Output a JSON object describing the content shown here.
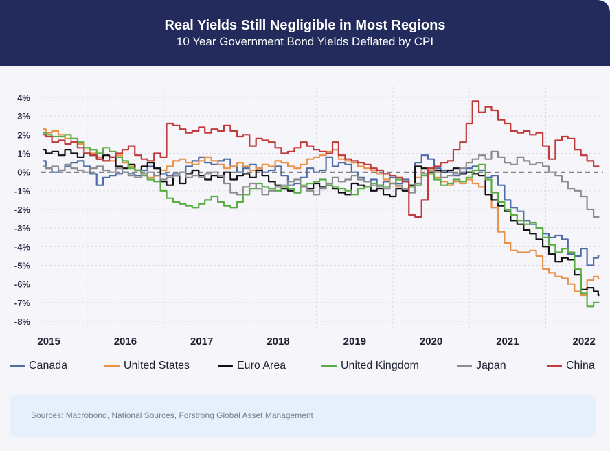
{
  "header": {
    "title": "Real Yields Still Negligible in Most Regions",
    "subtitle": "10 Year Government Bond Yields Deflated by CPI"
  },
  "source": "Sources: Macrobond, National Sources, Forstrong Global Asset Management",
  "chart_data": {
    "type": "line",
    "title": "Real Yields Still Negligible in Most Regions",
    "subtitle": "10 Year Government Bond Yields Deflated by CPI",
    "xlabel": "",
    "ylabel": "",
    "ylim": [
      -8,
      4
    ],
    "xlim": [
      2014.9,
      2022.25
    ],
    "grid": true,
    "legend": "bottom",
    "reference_line": 0,
    "yticks": [
      "4%",
      "3%",
      "2%",
      "1%",
      "0%",
      "-1%",
      "-2%",
      "-3%",
      "-4%",
      "-5%",
      "-6%",
      "-7%",
      "-8%"
    ],
    "ytick_values": [
      4,
      3,
      2,
      1,
      0,
      -1,
      -2,
      -3,
      -4,
      -5,
      -6,
      -7,
      -8
    ],
    "xticks": [
      "2015",
      "2016",
      "2017",
      "2018",
      "2019",
      "2020",
      "2021",
      "2022"
    ],
    "xtick_values": [
      2015,
      2016,
      2017,
      2018,
      2019,
      2020,
      2021,
      2022
    ],
    "x": [
      2014.92,
      2015.0,
      2015.08,
      2015.17,
      2015.25,
      2015.33,
      2015.42,
      2015.5,
      2015.58,
      2015.67,
      2015.75,
      2015.83,
      2015.92,
      2016.0,
      2016.08,
      2016.17,
      2016.25,
      2016.33,
      2016.42,
      2016.5,
      2016.58,
      2016.67,
      2016.75,
      2016.83,
      2016.92,
      2017.0,
      2017.08,
      2017.17,
      2017.25,
      2017.33,
      2017.42,
      2017.5,
      2017.58,
      2017.67,
      2017.75,
      2017.83,
      2017.92,
      2018.0,
      2018.08,
      2018.17,
      2018.25,
      2018.33,
      2018.42,
      2018.5,
      2018.58,
      2018.67,
      2018.75,
      2018.83,
      2018.92,
      2019.0,
      2019.08,
      2019.17,
      2019.25,
      2019.33,
      2019.42,
      2019.5,
      2019.58,
      2019.67,
      2019.75,
      2019.83,
      2019.92,
      2020.0,
      2020.08,
      2020.17,
      2020.25,
      2020.33,
      2020.42,
      2020.5,
      2020.58,
      2020.67,
      2020.75,
      2020.83,
      2020.92,
      2021.0,
      2021.08,
      2021.17,
      2021.25,
      2021.33,
      2021.42,
      2021.5,
      2021.58,
      2021.67,
      2021.75,
      2021.83,
      2021.92,
      2022.0,
      2022.08,
      2022.17,
      2022.2
    ],
    "series": [
      {
        "name": "Canada",
        "color": "#4f6ca3",
        "values": [
          0.6,
          0.2,
          0.0,
          0.1,
          0.3,
          0.5,
          0.6,
          0.3,
          -0.1,
          -0.7,
          -0.3,
          -0.2,
          -0.1,
          0.0,
          -0.1,
          -0.2,
          0.1,
          0.3,
          0.2,
          -0.1,
          -0.2,
          -0.1,
          0.0,
          0.3,
          0.6,
          0.8,
          0.5,
          0.4,
          0.6,
          0.7,
          0.3,
          0.0,
          0.2,
          0.4,
          0.2,
          0.0,
          0.1,
          0.3,
          -0.2,
          -0.7,
          -0.6,
          -0.3,
          0.2,
          0.0,
          0.1,
          0.8,
          0.3,
          0.5,
          0.4,
          0.0,
          -0.3,
          -0.5,
          -0.4,
          -0.7,
          -0.5,
          -0.3,
          -0.6,
          -0.4,
          -0.7,
          0.5,
          0.9,
          0.7,
          0.2,
          0.1,
          0.0,
          -0.2,
          0.0,
          0.2,
          0.3,
          0.1,
          -0.3,
          -0.2,
          -0.7,
          -1.5,
          -1.9,
          -2.1,
          -2.6,
          -2.8,
          -3.0,
          -3.3,
          -3.5,
          -3.4,
          -3.6,
          -4.4,
          -4.5,
          -4.1,
          -5.0,
          -4.6,
          -4.5
        ]
      },
      {
        "name": "United States",
        "color": "#e8924a",
        "values": [
          2.3,
          2.1,
          2.2,
          2.0,
          1.8,
          1.6,
          1.5,
          1.3,
          1.0,
          0.8,
          0.6,
          0.6,
          0.9,
          0.5,
          0.3,
          0.1,
          -0.1,
          -0.3,
          -0.2,
          0.1,
          0.3,
          0.6,
          0.7,
          0.5,
          0.4,
          0.6,
          0.8,
          0.6,
          0.4,
          0.2,
          0.3,
          0.5,
          0.3,
          0.1,
          0.2,
          0.4,
          0.3,
          0.6,
          0.5,
          0.3,
          0.2,
          0.4,
          0.7,
          0.8,
          0.9,
          1.1,
          1.2,
          0.7,
          0.6,
          0.5,
          0.3,
          0.2,
          0.1,
          -0.1,
          -0.4,
          -0.6,
          -0.8,
          -1.0,
          -0.7,
          -0.3,
          0.2,
          0.1,
          -0.3,
          -0.5,
          -0.7,
          -0.5,
          -0.6,
          -0.4,
          -0.6,
          -0.8,
          -1.2,
          -1.9,
          -3.2,
          -3.8,
          -4.2,
          -4.3,
          -4.3,
          -4.2,
          -4.5,
          -5.2,
          -5.4,
          -5.6,
          -5.7,
          -6.0,
          -6.4,
          -6.6,
          -5.8,
          -5.6,
          -5.7
        ]
      },
      {
        "name": "Euro Area",
        "color": "#111111",
        "values": [
          1.2,
          1.0,
          1.1,
          0.9,
          1.2,
          1.0,
          0.8,
          1.0,
          0.9,
          0.7,
          0.9,
          0.8,
          0.3,
          0.2,
          0.4,
          0.1,
          0.3,
          0.5,
          0.2,
          -0.5,
          -0.7,
          -0.2,
          -0.6,
          -0.1,
          0.1,
          -0.2,
          -0.4,
          -0.2,
          -0.3,
          0.0,
          -0.4,
          -0.2,
          -0.1,
          -0.3,
          0.1,
          -0.2,
          -0.5,
          -0.7,
          -0.9,
          -1.0,
          -1.1,
          -0.8,
          -0.9,
          -0.6,
          -0.8,
          -0.7,
          -0.9,
          -1.1,
          -1.2,
          -0.6,
          -0.7,
          -0.8,
          -1.0,
          -0.9,
          -1.2,
          -1.3,
          -0.9,
          -1.0,
          -0.7,
          0.3,
          0.2,
          0.0,
          0.1,
          0.0,
          0.1,
          0.2,
          -0.1,
          0.0,
          -0.1,
          -0.2,
          -1.2,
          -1.5,
          -1.8,
          -2.1,
          -2.6,
          -2.8,
          -3.1,
          -3.3,
          -3.6,
          -4.0,
          -4.4,
          -4.8,
          -4.6,
          -4.7,
          -5.5,
          -6.3,
          -6.2,
          -6.4,
          -6.6
        ]
      },
      {
        "name": "United Kingdom",
        "color": "#5aac44",
        "values": [
          2.1,
          2.0,
          1.9,
          1.9,
          2.0,
          1.8,
          1.6,
          1.3,
          1.2,
          1.0,
          1.3,
          1.1,
          0.8,
          0.6,
          0.2,
          0.1,
          -0.2,
          -0.4,
          -0.5,
          -1.0,
          -1.4,
          -1.6,
          -1.7,
          -1.8,
          -1.9,
          -1.7,
          -1.5,
          -1.3,
          -1.6,
          -1.8,
          -1.9,
          -1.6,
          -1.2,
          -0.9,
          -0.6,
          -0.8,
          -0.9,
          -1.0,
          -0.8,
          -0.9,
          -1.1,
          -0.7,
          -0.6,
          -0.5,
          -0.4,
          -0.7,
          -0.8,
          -0.9,
          -1.0,
          -1.2,
          -0.9,
          -0.8,
          -0.6,
          -0.7,
          -0.8,
          -0.6,
          -0.4,
          -0.5,
          -0.8,
          -0.7,
          -0.2,
          -0.1,
          -0.4,
          -0.7,
          -0.6,
          -0.4,
          -0.5,
          -0.3,
          0.1,
          0.4,
          -0.4,
          -1.1,
          -1.6,
          -2.0,
          -2.3,
          -2.6,
          -2.8,
          -2.7,
          -3.0,
          -3.5,
          -3.9,
          -4.3,
          -4.1,
          -4.3,
          -5.2,
          -6.5,
          -7.2,
          -7.0,
          -7.0
        ]
      },
      {
        "name": "Japan",
        "color": "#8c8c8c",
        "values": [
          0.3,
          0.2,
          0.3,
          0.1,
          0.4,
          0.2,
          0.1,
          0.0,
          0.2,
          0.3,
          0.1,
          0.0,
          0.2,
          0.0,
          -0.2,
          -0.3,
          -0.1,
          0.0,
          -0.2,
          -0.4,
          -0.3,
          -0.2,
          0.0,
          -0.3,
          -0.2,
          -0.3,
          -0.1,
          0.0,
          -0.2,
          -0.6,
          -1.1,
          -1.2,
          -0.8,
          -0.6,
          -0.9,
          -1.2,
          -1.0,
          -0.8,
          -0.7,
          -0.5,
          -0.4,
          -0.8,
          -1.0,
          -1.2,
          -0.9,
          -0.6,
          -0.3,
          -0.5,
          -0.4,
          -0.2,
          -0.4,
          -0.5,
          -0.7,
          -0.8,
          -0.9,
          -0.6,
          -0.7,
          -0.9,
          -1.1,
          -0.6,
          -0.1,
          0.2,
          0.0,
          -0.3,
          -0.2,
          -0.1,
          0.2,
          0.5,
          0.7,
          0.9,
          0.7,
          1.1,
          0.8,
          0.5,
          0.4,
          0.8,
          0.6,
          0.4,
          0.5,
          0.3,
          0.0,
          -0.2,
          -0.5,
          -0.9,
          -1.0,
          -1.3,
          -2.0,
          -2.4,
          -2.4
        ]
      },
      {
        "name": "China",
        "color": "#c0393b",
        "values": [
          2.0,
          1.9,
          1.6,
          1.7,
          1.5,
          1.6,
          1.3,
          1.0,
          0.9,
          0.7,
          0.6,
          0.8,
          1.0,
          1.2,
          1.4,
          0.9,
          0.7,
          0.6,
          1.0,
          0.8,
          2.6,
          2.5,
          2.3,
          2.1,
          2.2,
          2.4,
          2.1,
          2.3,
          2.2,
          2.5,
          2.2,
          1.9,
          2.0,
          1.4,
          1.8,
          1.7,
          1.6,
          1.3,
          1.0,
          1.1,
          1.3,
          1.6,
          1.4,
          1.2,
          1.1,
          1.0,
          1.6,
          0.9,
          0.7,
          0.6,
          0.5,
          0.4,
          0.2,
          0.1,
          -0.1,
          -0.2,
          -0.3,
          -0.5,
          -2.3,
          -2.4,
          -1.5,
          0.2,
          0.3,
          0.5,
          0.6,
          1.2,
          1.6,
          2.6,
          3.8,
          3.2,
          3.5,
          3.3,
          2.8,
          2.6,
          2.2,
          2.1,
          2.2,
          2.0,
          2.1,
          1.4,
          0.7,
          1.7,
          1.9,
          1.8,
          1.2,
          0.9,
          0.6,
          0.3,
          0.3
        ]
      }
    ]
  }
}
